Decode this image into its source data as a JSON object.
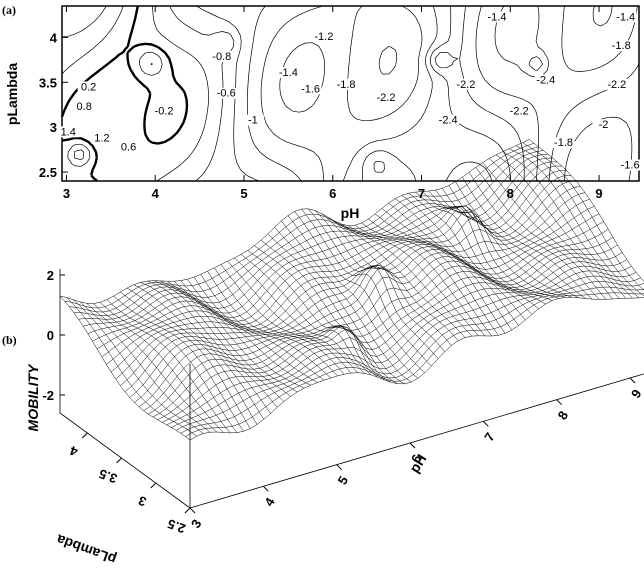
{
  "chart_data": [
    {
      "panel": "(a)",
      "type": "contour",
      "xlabel": "pH",
      "ylabel": "pLambda",
      "xlim": [
        2.95,
        9.45
      ],
      "ylim": [
        2.4,
        4.35
      ],
      "xticks": [
        "3",
        "4",
        "5",
        "6",
        "7",
        "8",
        "9"
      ],
      "yticks": [
        "2.5",
        "3",
        "3.5",
        "4"
      ],
      "contour_labels": [
        {
          "text": "-1.4",
          "x": 7.85,
          "y": 4.2
        },
        {
          "text": "-1.4",
          "x": 9.3,
          "y": 4.2
        },
        {
          "text": "-1.2",
          "x": 5.9,
          "y": 3.98
        },
        {
          "text": "-0.8",
          "x": 4.75,
          "y": 3.76
        },
        {
          "text": "-1.8",
          "x": 9.25,
          "y": 3.88
        },
        {
          "text": "-1.4",
          "x": 5.5,
          "y": 3.58
        },
        {
          "text": "0.2",
          "x": 3.25,
          "y": 3.42
        },
        {
          "text": "-0.6",
          "x": 4.8,
          "y": 3.35
        },
        {
          "text": "-0.2",
          "x": 4.1,
          "y": 3.15
        },
        {
          "text": "0.8",
          "x": 3.2,
          "y": 3.2
        },
        {
          "text": "-1",
          "x": 5.1,
          "y": 3.05
        },
        {
          "text": "-1.6",
          "x": 5.75,
          "y": 3.4
        },
        {
          "text": "-1.8",
          "x": 6.15,
          "y": 3.45
        },
        {
          "text": "-2.2",
          "x": 6.6,
          "y": 3.3
        },
        {
          "text": "-2.2",
          "x": 7.5,
          "y": 3.45
        },
        {
          "text": "-2.4",
          "x": 8.4,
          "y": 3.5
        },
        {
          "text": "-2.2",
          "x": 9.2,
          "y": 3.45
        },
        {
          "text": "-2.4",
          "x": 7.3,
          "y": 3.05
        },
        {
          "text": "-2.2",
          "x": 8.1,
          "y": 3.15
        },
        {
          "text": "-2",
          "x": 9.05,
          "y": 3.0
        },
        {
          "text": "1.4",
          "x": 3.02,
          "y": 2.92
        },
        {
          "text": "1.2",
          "x": 3.4,
          "y": 2.85
        },
        {
          "text": "0.6",
          "x": 3.7,
          "y": 2.75
        },
        {
          "text": "-1.8",
          "x": 8.6,
          "y": 2.8
        },
        {
          "text": "-1.6",
          "x": 9.35,
          "y": 2.55
        }
      ]
    },
    {
      "panel": "(b)",
      "type": "surface",
      "xlabel": "pH",
      "ylabel": "pLambda",
      "zlabel": "MOBILITY",
      "xticks": [
        "3",
        "4",
        "5",
        "6",
        "7",
        "8",
        "9"
      ],
      "yticks": [
        "2.5",
        "3",
        "3.5",
        "4"
      ],
      "zticks": [
        "2",
        "0",
        "-2"
      ]
    }
  ]
}
